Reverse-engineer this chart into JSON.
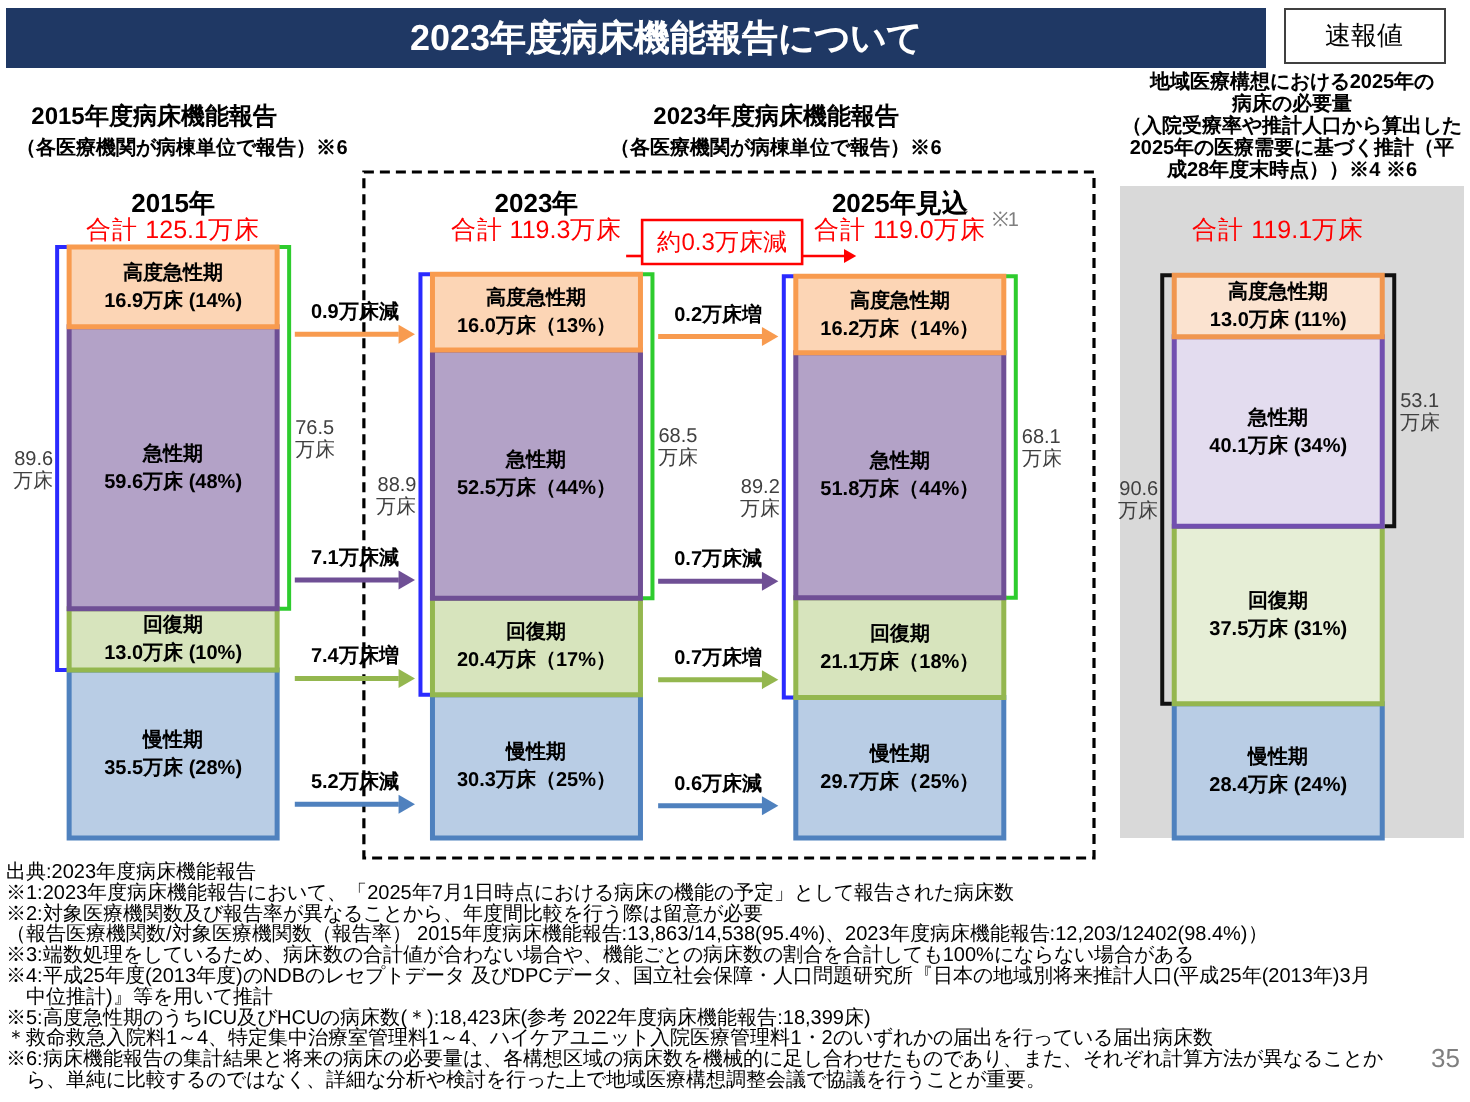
{
  "chart_data": [
    {
      "type": "bar",
      "title": "2023年度病床機能報告について",
      "stacked": true,
      "legend": false,
      "tick_labels": "x",
      "categories": [
        "2015年",
        "2023年",
        "2025年見込"
      ],
      "series": [
        {
          "name": "慢性期",
          "color": "#b9cde5",
          "values": [
            35.5,
            30.3,
            29.7
          ],
          "value_labels": [
            "35.5万床 (28%)",
            "30.3万床（25%）",
            "29.7万床（25%）"
          ]
        },
        {
          "name": "回復期",
          "color": "#d7e4bd",
          "values": [
            13.0,
            20.4,
            21.1
          ],
          "value_labels": [
            "13.0万床 (10%)",
            "20.4万床（17%）",
            "21.1万床（18%）"
          ]
        },
        {
          "name": "急性期",
          "color": "#b3a2c7",
          "values": [
            59.6,
            52.5,
            51.8
          ],
          "value_labels": [
            "59.6万床 (48%)",
            "52.5万床（44%）",
            "51.8万床（44%）"
          ]
        },
        {
          "name": "高度急性期",
          "color": "#fcd5b5",
          "values": [
            16.9,
            16.0,
            16.2
          ],
          "value_labels": [
            "16.9万床 (14%)",
            "16.0万床（13%）",
            "16.2万床（14%）"
          ]
        }
      ],
      "totals": [
        "合計 125.1万床",
        "合計 119.3万床",
        "合計 119.0万床"
      ],
      "annotations": [
        "速報値",
        "2015年度病床機能報告",
        "（各医療機関が病棟単位で報告）※6",
        "2023年度病床機能報告",
        "（各医療機関が病棟単位で報告）※6",
        "約0.3万床減",
        "※1",
        "89.6\n万床",
        "76.5\n万床",
        "88.9\n万床",
        "68.5\n万床",
        "89.2\n万床",
        "68.1\n万床",
        "0.9万床減",
        "7.1万床減",
        "7.4万床増",
        "5.2万床減",
        "0.2万床増",
        "0.7万床減",
        "0.7万床増",
        "0.6万床減",
        "出典:2023年度病床機能報告",
        "※1:2023年度病床機能報告において、「2025年7月1日時点における病床の機能の予定」として報告された病床数",
        "※2:対象医療機関数及び報告率が異なることから、年度間比較を行う際は留意が必要",
        "（報告医療機関数/対象医療機関数（報告率） 2015年度病床機能報告:13,863/14,538(95.4%)、2023年度病床機能報告:12,203/12402(98.4%)）",
        "※3:端数処理をしているため、病床数の合計値が合わない場合や、機能ごとの病床数の割合を合計しても100%にならない場合がある",
        "※4:平成25年度(2013年度)のNDBのレセプトデータ 及びDPCデータ、国立社会保障・人口問題研究所『日本の地域別将来推計人口(平成25年(2013年)3月中位推計)』等を用いて推計",
        "※5:高度急性期のうちICU及びHCUの病床数(＊):18,423床(参考 2022年度病床機能報告:18,399床)",
        "＊救命救急入院料1～4、特定集中治療室管理料1～4、ハイケアユニット入院医療管理料1・2のいずれかの届出を行っている届出病床数",
        "※6:病床機能報告の集計結果と将来の病床の必要量は、各構想区域の病床数を機械的に足し合わせたものであり、また、それぞれ計算方法が異なることから、単純に比較するのではなく、詳細な分析や検討を行った上で地域医療構想調整会議で協議を行うことが重要。",
        "35"
      ]
    },
    {
      "type": "bar",
      "title": "地域医療構想における2025年の病床の必要量",
      "subtitle": "（入院受療率や推計人口から算出した2025年の医療需要に基づく推計（平成28年度末時点））※4 ※6",
      "stacked": true,
      "legend": false,
      "tick_labels": false,
      "categories": [
        null
      ],
      "series": [
        {
          "name": "慢性期",
          "color": "#b9cde5",
          "values": [
            28.4
          ],
          "value_labels": [
            "28.4万床 (24%)"
          ]
        },
        {
          "name": "回復期",
          "color": "#e6eed6",
          "values": [
            37.5
          ],
          "value_labels": [
            "37.5万床 (31%)"
          ]
        },
        {
          "name": "急性期",
          "color": "#e3dcef",
          "values": [
            40.1
          ],
          "value_labels": [
            "40.1万床 (34%)"
          ]
        },
        {
          "name": "高度急性期",
          "color": "#fbe3d0",
          "values": [
            13.0
          ],
          "value_labels": [
            "13.0万床 (11%)"
          ]
        }
      ],
      "totals": [
        "合計 119.1万床"
      ],
      "annotations": [
        "90.6\n万床",
        "53.1\n万床"
      ]
    }
  ]
}
